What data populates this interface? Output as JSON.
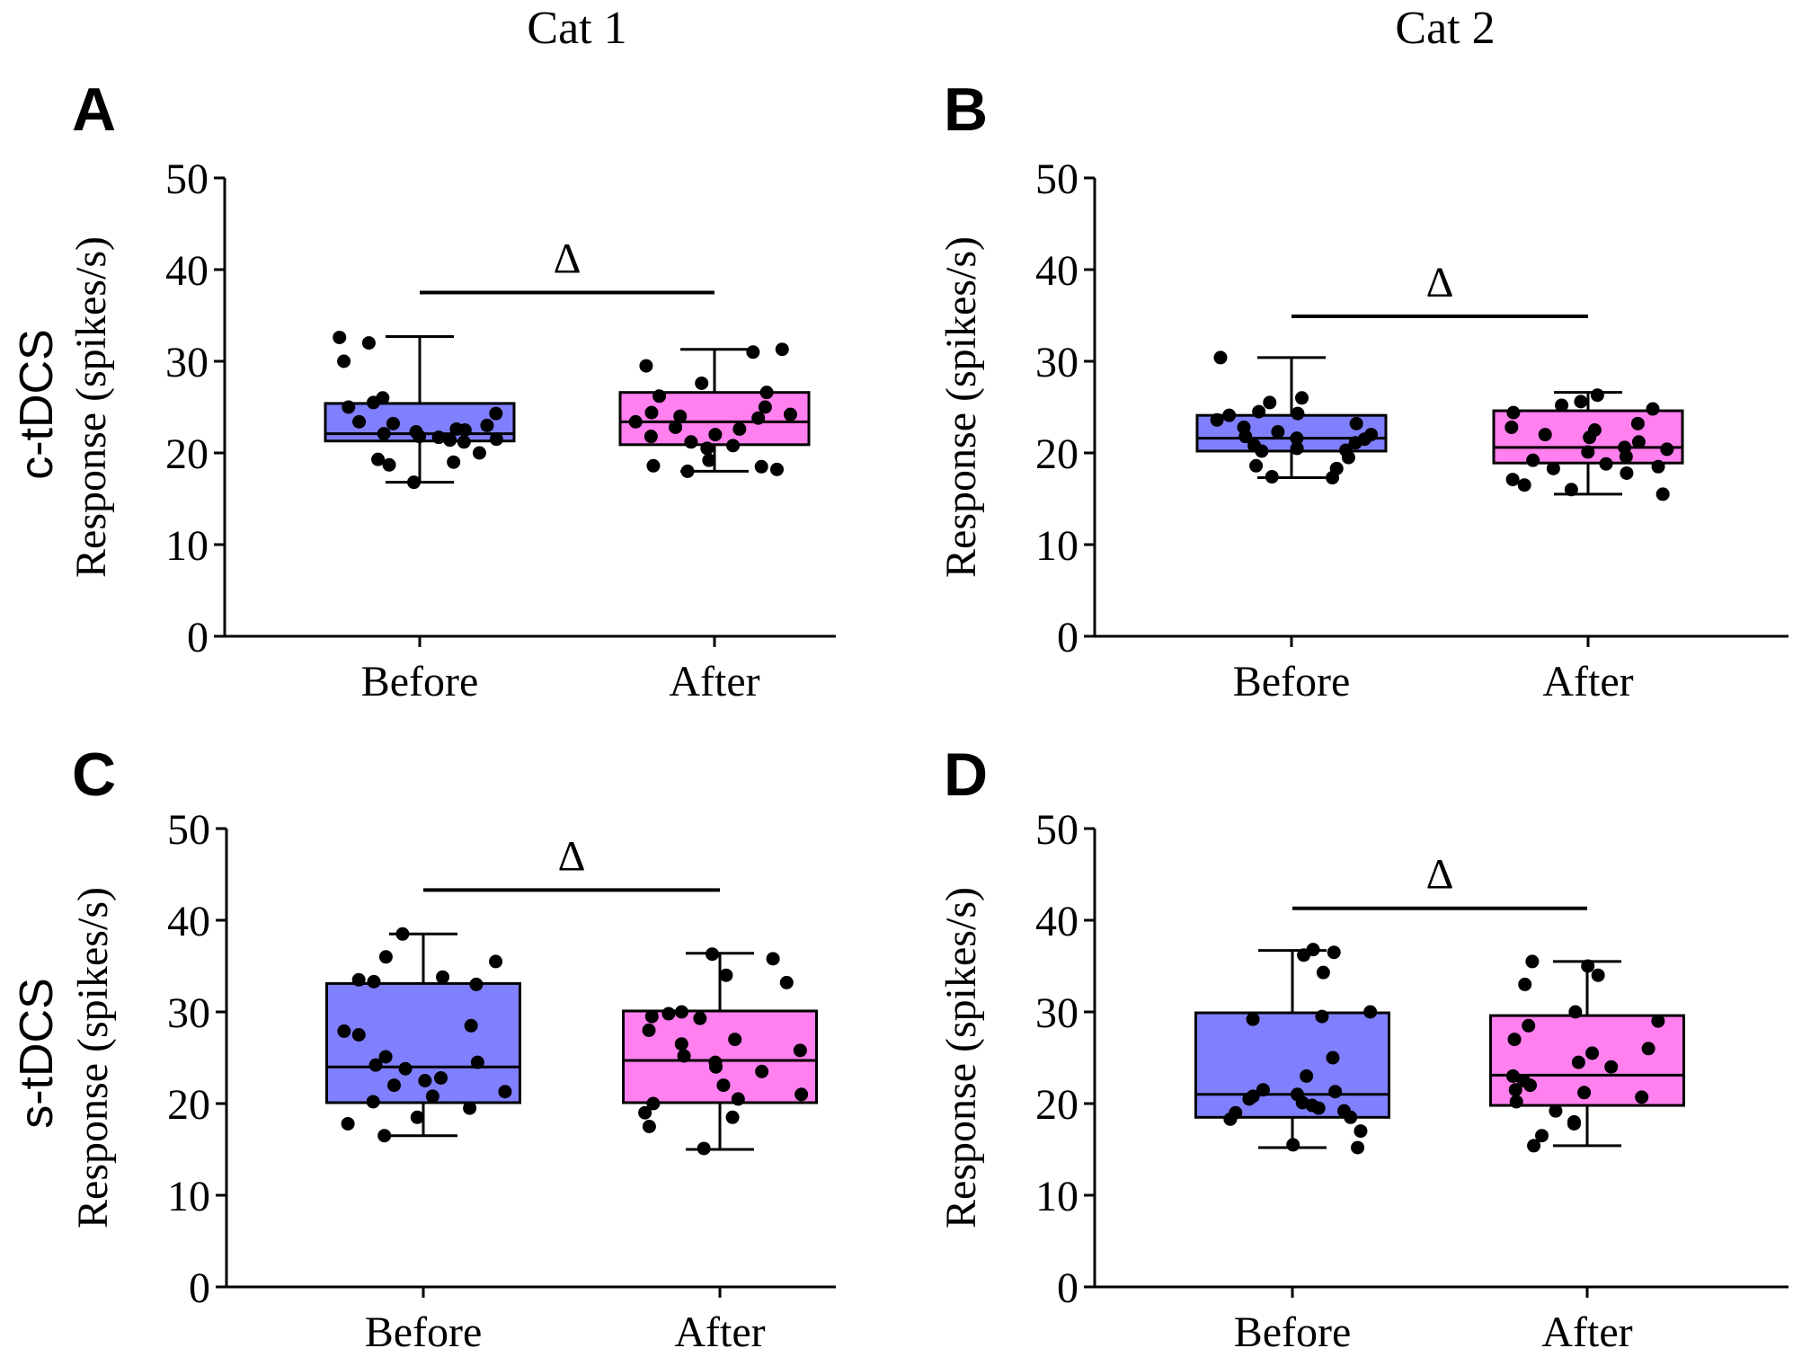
{
  "column_headers": [
    "Cat 1",
    "Cat 2"
  ],
  "row_headers": [
    "c-tDCS",
    "s-tDCS"
  ],
  "colors": {
    "before": "#8080ff",
    "after": "#ff80ee",
    "line": "#000000",
    "dot": "#000000"
  },
  "chart_data": [
    {
      "panel": "A",
      "type": "box",
      "title": "",
      "xlabel": "",
      "ylabel": "Response (spikes/s)",
      "ylim": [
        0,
        50
      ],
      "yticks": [
        0,
        10,
        20,
        30,
        40,
        50
      ],
      "categories": [
        "Before",
        "After"
      ],
      "boxes": [
        {
          "whisker_low": 16.8,
          "q1": 21.3,
          "median": 22.1,
          "q3": 25.4,
          "whisker_high": 32.7
        },
        {
          "whisker_low": 18.0,
          "q1": 20.9,
          "median": 23.4,
          "q3": 26.6,
          "whisker_high": 31.3
        }
      ],
      "points": [
        [
          32.6,
          32.0,
          30.0,
          26.0,
          25.5,
          25.0,
          24.3,
          23.4,
          23.2,
          23.0,
          22.6,
          22.5,
          22.3,
          22.1,
          21.8,
          21.7,
          21.5,
          21.4,
          21.2,
          20.0,
          19.3,
          19.0,
          18.7,
          16.8
        ],
        [
          31.3,
          31.0,
          29.5,
          27.6,
          26.6,
          26.2,
          25.0,
          24.4,
          24.2,
          24.0,
          23.8,
          23.4,
          22.8,
          22.6,
          22.0,
          21.8,
          21.2,
          20.8,
          20.5,
          19.2,
          18.6,
          18.5,
          18.2,
          18.0
        ]
      ],
      "significance": "Δ",
      "significance_level": 37.5
    },
    {
      "panel": "B",
      "type": "box",
      "title": "",
      "xlabel": "",
      "ylabel": "Response (spikes/s)",
      "ylim": [
        0,
        50
      ],
      "yticks": [
        0,
        10,
        20,
        30,
        40,
        50
      ],
      "categories": [
        "Before",
        "After"
      ],
      "boxes": [
        {
          "whisker_low": 17.3,
          "q1": 20.2,
          "median": 21.6,
          "q3": 24.1,
          "whisker_high": 30.4
        },
        {
          "whisker_low": 15.5,
          "q1": 18.9,
          "median": 20.6,
          "q3": 24.6,
          "whisker_high": 26.6
        }
      ],
      "points": [
        [
          30.4,
          26.0,
          25.5,
          24.5,
          24.3,
          24.1,
          23.6,
          23.2,
          22.8,
          22.3,
          22.0,
          21.8,
          21.6,
          21.5,
          21.1,
          20.8,
          20.5,
          20.3,
          20.2,
          19.5,
          18.6,
          18.3,
          17.4,
          17.3
        ],
        [
          26.3,
          25.6,
          25.2,
          24.8,
          24.4,
          23.2,
          22.8,
          22.5,
          22.0,
          21.7,
          21.2,
          20.6,
          20.4,
          20.1,
          19.6,
          19.2,
          18.8,
          18.5,
          18.3,
          17.8,
          17.1,
          16.5,
          16.0,
          15.5
        ]
      ],
      "significance": "Δ",
      "significance_level": 34.9
    },
    {
      "panel": "C",
      "type": "box",
      "title": "",
      "xlabel": "",
      "ylabel": "Response (spikes/s)",
      "ylim": [
        0,
        50
      ],
      "yticks": [
        0,
        10,
        20,
        30,
        40,
        50
      ],
      "categories": [
        "Before",
        "After"
      ],
      "boxes": [
        {
          "whisker_low": 16.5,
          "q1": 20.1,
          "median": 24.0,
          "q3": 33.1,
          "whisker_high": 38.5
        },
        {
          "whisker_low": 15.0,
          "q1": 20.1,
          "median": 24.7,
          "q3": 30.1,
          "whisker_high": 36.4
        }
      ],
      "points": [
        [
          38.5,
          36.0,
          35.5,
          33.8,
          33.5,
          33.3,
          33.0,
          28.5,
          27.9,
          27.5,
          25.1,
          24.5,
          24.2,
          23.8,
          22.8,
          22.5,
          22.0,
          21.3,
          20.8,
          20.2,
          19.5,
          18.5,
          17.8,
          16.5
        ],
        [
          36.3,
          35.8,
          34.0,
          33.2,
          30.0,
          29.8,
          29.5,
          29.3,
          28.0,
          27.0,
          26.5,
          25.8,
          25.2,
          24.5,
          24.0,
          23.5,
          22.0,
          21.0,
          20.5,
          20.0,
          19.0,
          18.5,
          17.5,
          15.1
        ]
      ],
      "significance": "Δ",
      "significance_level": 43.3
    },
    {
      "panel": "D",
      "type": "box",
      "title": "",
      "xlabel": "",
      "ylabel": "Response (spikes/s)",
      "ylim": [
        0,
        50
      ],
      "yticks": [
        0,
        10,
        20,
        30,
        40,
        50
      ],
      "categories": [
        "Before",
        "After"
      ],
      "boxes": [
        {
          "whisker_low": 15.2,
          "q1": 18.5,
          "median": 21.0,
          "q3": 29.9,
          "whisker_high": 36.7
        },
        {
          "whisker_low": 15.4,
          "q1": 19.8,
          "median": 23.1,
          "q3": 29.6,
          "whisker_high": 35.5
        }
      ],
      "points": [
        [
          36.8,
          36.5,
          36.2,
          34.3,
          30.0,
          29.5,
          29.2,
          25.0,
          23.0,
          21.5,
          21.3,
          21.0,
          20.8,
          20.5,
          20.1,
          19.8,
          19.5,
          19.2,
          19.0,
          18.5,
          18.3,
          17.0,
          15.5,
          15.2
        ],
        [
          35.5,
          35.0,
          34.0,
          33.0,
          30.0,
          29.0,
          28.5,
          27.0,
          26.0,
          25.5,
          24.5,
          24.0,
          23.0,
          22.5,
          22.0,
          21.5,
          21.2,
          20.7,
          20.2,
          19.2,
          18.0,
          17.8,
          16.5,
          15.4
        ]
      ],
      "significance": "Δ",
      "significance_level": 41.3
    }
  ]
}
